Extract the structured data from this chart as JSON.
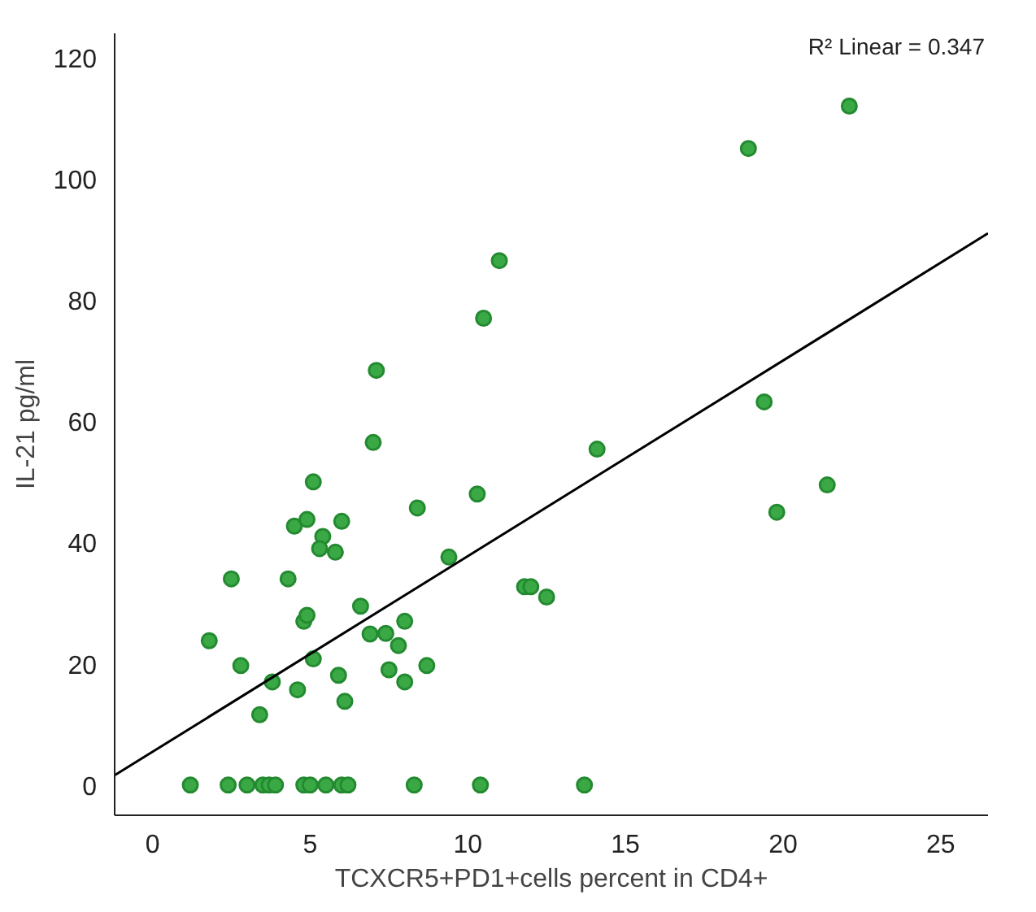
{
  "chart_data": {
    "type": "scatter",
    "xlabel": "TCXCR5+PD1+cells percent in CD4+",
    "ylabel": "IL-21 pg/ml",
    "annotations": [
      "R² Linear = 0.347"
    ],
    "xlim": [
      -1.2,
      26.5
    ],
    "ylim": [
      -5,
      124
    ],
    "xticks": [
      0,
      5,
      10,
      15,
      20,
      25
    ],
    "yticks": [
      0,
      20,
      40,
      60,
      80,
      100,
      120
    ],
    "grid": false,
    "series": [
      {
        "color": "#3aa845",
        "marker": "circle",
        "x": [
          1.2,
          2.4,
          3.0,
          3.5,
          3.7,
          3.9,
          4.8,
          5.0,
          5.5,
          6.0,
          6.2,
          8.3,
          10.4,
          13.7,
          1.8,
          2.5,
          2.8,
          3.4,
          3.8,
          4.3,
          4.5,
          4.6,
          4.9,
          4.8,
          4.9,
          5.1,
          5.1,
          5.4,
          5.3,
          5.8,
          5.9,
          6.0,
          6.1,
          6.6,
          6.9,
          7.0,
          7.1,
          7.4,
          7.5,
          7.8,
          8.0,
          8.0,
          8.4,
          8.7,
          9.4,
          10.3,
          10.5,
          11.0,
          11.8,
          12.0,
          12.5,
          14.1,
          18.9,
          19.4,
          19.8,
          21.4,
          22.1
        ],
        "values": [
          0,
          0,
          0,
          0,
          0,
          0,
          0,
          0,
          0,
          0,
          0,
          0,
          0,
          0,
          23.8,
          34,
          19.7,
          11.6,
          17,
          34,
          42.7,
          15.7,
          43.8,
          27,
          28,
          50,
          20.8,
          41,
          39,
          38.4,
          18.1,
          43.5,
          13.8,
          29.5,
          24.9,
          56.5,
          68.4,
          25,
          19,
          23,
          17,
          27,
          45.7,
          19.7,
          37.6,
          48,
          77,
          86.5,
          32.7,
          32.7,
          31,
          55.4,
          105,
          63.2,
          45,
          49.5,
          112
        ]
      },
      {
        "type": "line",
        "color": "#000000",
        "line_style": "solid",
        "marker": "none",
        "x": [
          -1.2,
          26.5
        ],
        "values": [
          1.6,
          91.0
        ]
      }
    ]
  }
}
